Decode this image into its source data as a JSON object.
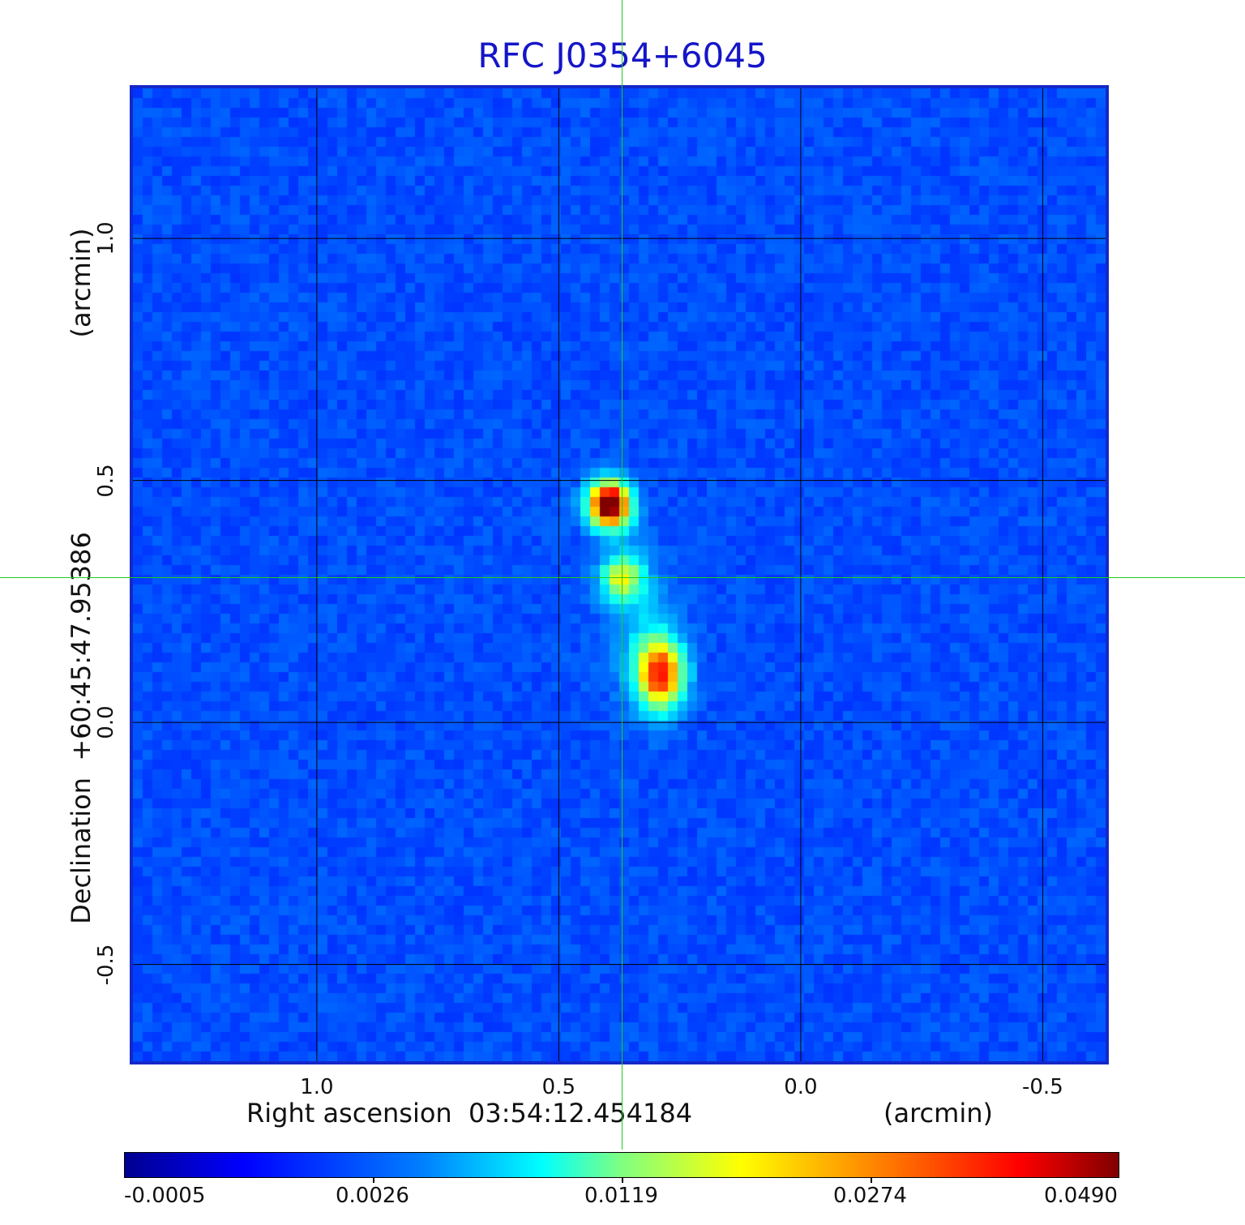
{
  "title": "RFC J0354+6045",
  "chart_data": {
    "type": "heatmap",
    "title": "RFC J0354+6045",
    "xlabel": "Right ascension  03:54:12.454184",
    "x_unit": "(arcmin)",
    "ylabel": "Declination  +60:45:47.95386",
    "y_unit": "(arcmin)",
    "x_ticks": [
      "1.0",
      "0.5",
      "0.0",
      "-0.5"
    ],
    "y_ticks": [
      "1.0",
      "0.5",
      "0.0",
      "-0.5"
    ],
    "xlim": [
      1.38,
      -0.63
    ],
    "ylim": [
      -0.7,
      1.31
    ],
    "grid": true,
    "colormap": "jet",
    "colorbar_ticks": [
      "-0.0005",
      "0.0026",
      "0.0119",
      "0.0274",
      "0.0490"
    ],
    "crosshair": {
      "x": 0.37,
      "y": 0.3
    },
    "sources": [
      {
        "x": 0.395,
        "y": 0.45,
        "peak": 0.049
      },
      {
        "x": 0.37,
        "y": 0.3,
        "peak": 0.0119
      },
      {
        "x": 0.29,
        "y": 0.1,
        "peak": 0.0274
      }
    ]
  },
  "colors": {
    "title": "#1515c8",
    "background_sky": "#1e46ff",
    "crosshair": "#1dcf1d",
    "grid": "#000000"
  }
}
